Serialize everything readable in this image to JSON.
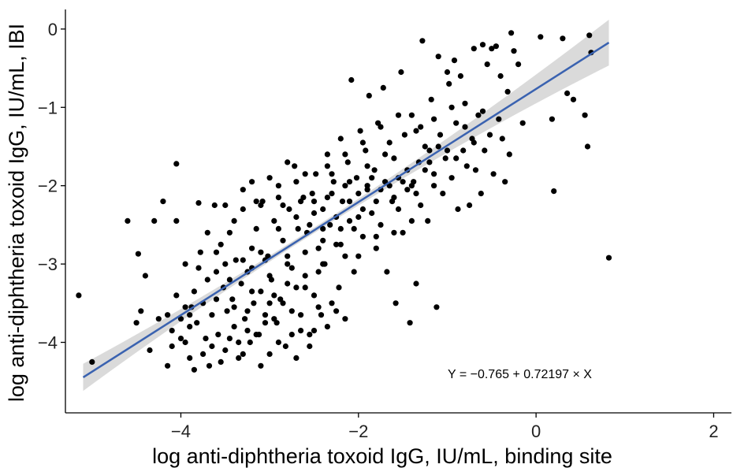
{
  "chart_data": {
    "type": "scatter",
    "xlabel": "log anti-diphtheria toxoid IgG, IU/mL, binding site",
    "ylabel": "log anti-diphtheria toxoid IgG, IU/mL, IBI",
    "xlim": [
      -5.3,
      2.2
    ],
    "ylim": [
      -4.9,
      0.25
    ],
    "x_ticks": [
      -4,
      -2,
      0,
      2
    ],
    "y_ticks": [
      0,
      -1,
      -2,
      -3,
      -4
    ],
    "x_tick_labels": [
      "−4",
      "−2",
      "0",
      "2"
    ],
    "y_tick_labels": [
      "0",
      "−1",
      "−2",
      "−3",
      "−4"
    ],
    "grid": false,
    "regression": {
      "intercept": -0.765,
      "slope": 0.72197,
      "x_range": [
        -5.1,
        0.82
      ],
      "color": "#3a62b0",
      "band_color": "#d3d3d3",
      "annotation": "Y = −0.765 + 0.72197 × X"
    },
    "point_color": "#000000",
    "points": [
      [
        -5.15,
        -3.4
      ],
      [
        -5.0,
        -4.25
      ],
      [
        -4.6,
        -2.45
      ],
      [
        -4.5,
        -3.75
      ],
      [
        -4.48,
        -2.87
      ],
      [
        -4.45,
        -3.6
      ],
      [
        -4.4,
        -3.15
      ],
      [
        -4.35,
        -4.1
      ],
      [
        -4.3,
        -2.45
      ],
      [
        -4.2,
        -2.2
      ],
      [
        -4.15,
        -3.65
      ],
      [
        -4.1,
        -3.85
      ],
      [
        -4.05,
        -2.45
      ],
      [
        -4.05,
        -1.72
      ],
      [
        -4.0,
        -3.7
      ],
      [
        -3.95,
        -4.0
      ],
      [
        -3.95,
        -3.0
      ],
      [
        -3.9,
        -3.8
      ],
      [
        -3.9,
        -4.2
      ],
      [
        -3.88,
        -3.55
      ],
      [
        -3.85,
        -4.35
      ],
      [
        -3.82,
        -3.75
      ],
      [
        -3.8,
        -2.22
      ],
      [
        -3.78,
        -2.85
      ],
      [
        -3.75,
        -3.5
      ],
      [
        -3.72,
        -3.95
      ],
      [
        -3.7,
        -2.6
      ],
      [
        -3.68,
        -4.3
      ],
      [
        -3.65,
        -3.65
      ],
      [
        -3.62,
        -2.25
      ],
      [
        -3.6,
        -3.1
      ],
      [
        -3.58,
        -3.9
      ],
      [
        -3.55,
        -2.75
      ],
      [
        -3.52,
        -3.3
      ],
      [
        -3.5,
        -4.1
      ],
      [
        -3.48,
        -3.6
      ],
      [
        -3.45,
        -2.6
      ],
      [
        -3.42,
        -3.45
      ],
      [
        -3.4,
        -3.8
      ],
      [
        -3.38,
        -2.95
      ],
      [
        -3.35,
        -4.2
      ],
      [
        -3.32,
        -3.25
      ],
      [
        -3.3,
        -2.3
      ],
      [
        -3.28,
        -3.7
      ],
      [
        -3.25,
        -3.1
      ],
      [
        -3.22,
        -4.0
      ],
      [
        -3.2,
        -2.8
      ],
      [
        -3.18,
        -3.5
      ],
      [
        -3.15,
        -2.55
      ],
      [
        -3.12,
        -3.9
      ],
      [
        -3.1,
        -3.35
      ],
      [
        -3.08,
        -2.2
      ],
      [
        -3.05,
        -3.65
      ],
      [
        -3.02,
        -2.9
      ],
      [
        -3.0,
        -4.15
      ],
      [
        -2.98,
        -3.2
      ],
      [
        -2.95,
        -2.45
      ],
      [
        -2.92,
        -3.75
      ],
      [
        -2.9,
        -2.0
      ],
      [
        -2.88,
        -3.45
      ],
      [
        -2.85,
        -2.7
      ],
      [
        -2.82,
        -4.05
      ],
      [
        -2.8,
        -3.0
      ],
      [
        -2.78,
        -2.3
      ],
      [
        -2.75,
        -3.6
      ],
      [
        -2.72,
        -1.75
      ],
      [
        -2.7,
        -3.3
      ],
      [
        -2.68,
        -2.55
      ],
      [
        -2.65,
        -3.85
      ],
      [
        -2.62,
        -2.15
      ],
      [
        -2.6,
        -3.15
      ],
      [
        -2.58,
        -2.6
      ],
      [
        -2.55,
        -3.9
      ],
      [
        -2.52,
        -2.1
      ],
      [
        -2.5,
        -3.4
      ],
      [
        -2.48,
        -1.85
      ],
      [
        -2.45,
        -2.8
      ],
      [
        -2.42,
        -3.65
      ],
      [
        -2.4,
        -2.3
      ],
      [
        -2.38,
        -3.0
      ],
      [
        -2.35,
        -1.6
      ],
      [
        -2.32,
        -2.5
      ],
      [
        -2.3,
        -3.5
      ],
      [
        -2.28,
        -1.95
      ],
      [
        -2.25,
        -2.75
      ],
      [
        -2.22,
        -3.3
      ],
      [
        -2.2,
        -1.4
      ],
      [
        -2.18,
        -2.2
      ],
      [
        -2.15,
        -2.9
      ],
      [
        -2.12,
        -1.7
      ],
      [
        -2.1,
        -2.45
      ],
      [
        -2.08,
        -0.65
      ],
      [
        -2.05,
        -3.1
      ],
      [
        -2.02,
        -1.9
      ],
      [
        -2.0,
        -2.1
      ],
      [
        -1.98,
        -1.3
      ],
      [
        -1.95,
        -2.65
      ],
      [
        -1.92,
        -1.55
      ],
      [
        -1.9,
        -2.0
      ],
      [
        -1.88,
        -0.85
      ],
      [
        -1.85,
        -2.35
      ],
      [
        -1.82,
        -1.8
      ],
      [
        -1.8,
        -2.8
      ],
      [
        -1.78,
        -1.2
      ],
      [
        -1.75,
        -2.05
      ],
      [
        -1.72,
        -0.75
      ],
      [
        -1.7,
        -1.95
      ],
      [
        -1.68,
        -3.1
      ],
      [
        -1.65,
        -1.45
      ],
      [
        -1.62,
        -2.2
      ],
      [
        -1.6,
        -1.65
      ],
      [
        -1.58,
        -3.5
      ],
      [
        -1.55,
        -1.9
      ],
      [
        -1.52,
        -0.55
      ],
      [
        -1.5,
        -2.6
      ],
      [
        -1.48,
        -1.35
      ],
      [
        -1.45,
        -2.05
      ],
      [
        -1.42,
        -3.75
      ],
      [
        -1.4,
        -1.1
      ],
      [
        -1.38,
        -1.95
      ],
      [
        -1.35,
        -3.25
      ],
      [
        -1.32,
        -1.7
      ],
      [
        -1.3,
        -2.25
      ],
      [
        -1.28,
        -0.15
      ],
      [
        -1.25,
        -1.8
      ],
      [
        -1.22,
        -2.45
      ],
      [
        -1.2,
        -1.55
      ],
      [
        -1.18,
        -0.9
      ],
      [
        -1.15,
        -2.0
      ],
      [
        -1.12,
        -3.55
      ],
      [
        -1.1,
        -0.35
      ],
      [
        -1.08,
        -1.35
      ],
      [
        -1.05,
        -2.1
      ],
      [
        -1.02,
        -1.65
      ],
      [
        -1.0,
        -0.55
      ],
      [
        -0.98,
        -0.7
      ],
      [
        -0.95,
        -1.9
      ],
      [
        -0.92,
        -0.4
      ],
      [
        -0.9,
        -1.2
      ],
      [
        -0.88,
        -2.3
      ],
      [
        -0.85,
        -0.6
      ],
      [
        -0.82,
        -1.55
      ],
      [
        -0.8,
        -0.95
      ],
      [
        -0.78,
        -1.75
      ],
      [
        -0.75,
        -2.25
      ],
      [
        -0.72,
        -1.4
      ],
      [
        -0.7,
        -0.25
      ],
      [
        -0.68,
        -1.8
      ],
      [
        -0.65,
        -1.1
      ],
      [
        -0.62,
        -2.1
      ],
      [
        -0.6,
        -0.2
      ],
      [
        -0.58,
        -1.55
      ],
      [
        -0.55,
        -0.45
      ],
      [
        -0.52,
        -1.35
      ],
      [
        -0.5,
        -0.25
      ],
      [
        -0.48,
        -1.85
      ],
      [
        -0.45,
        -0.22
      ],
      [
        -0.42,
        -1.15
      ],
      [
        -0.4,
        -0.6
      ],
      [
        -0.38,
        -1.4
      ],
      [
        -0.35,
        -1.95
      ],
      [
        -0.32,
        -0.8
      ],
      [
        -0.3,
        -1.6
      ],
      [
        -0.28,
        -0.05
      ],
      [
        -0.25,
        -0.28
      ],
      [
        -0.2,
        -0.45
      ],
      [
        -0.15,
        -1.2
      ],
      [
        0.05,
        -0.1
      ],
      [
        0.18,
        -1.15
      ],
      [
        0.2,
        -2.07
      ],
      [
        0.3,
        -0.12
      ],
      [
        0.35,
        -0.82
      ],
      [
        0.42,
        -0.9
      ],
      [
        0.55,
        -1.1
      ],
      [
        0.58,
        -1.5
      ],
      [
        0.6,
        -0.08
      ],
      [
        0.62,
        -0.3
      ],
      [
        0.82,
        -2.92
      ],
      [
        -3.6,
        -2.85
      ],
      [
        -3.4,
        -2.45
      ],
      [
        -3.25,
        -3.6
      ],
      [
        -3.15,
        -2.2
      ],
      [
        -3.05,
        -2.95
      ],
      [
        -2.95,
        -3.4
      ],
      [
        -2.85,
        -2.25
      ],
      [
        -2.75,
        -3.05
      ],
      [
        -2.65,
        -2.2
      ],
      [
        -2.55,
        -2.5
      ],
      [
        -2.45,
        -3.1
      ],
      [
        -2.35,
        -2.15
      ],
      [
        -2.25,
        -2.4
      ],
      [
        -2.15,
        -2.0
      ],
      [
        -2.05,
        -2.55
      ],
      [
        -1.95,
        -2.3
      ],
      [
        -1.85,
        -1.9
      ],
      [
        -1.75,
        -2.5
      ],
      [
        -1.65,
        -2.0
      ],
      [
        -1.55,
        -2.3
      ],
      [
        -1.45,
        -1.8
      ],
      [
        -1.35,
        -2.1
      ],
      [
        -1.25,
        -1.5
      ],
      [
        -1.15,
        -1.85
      ],
      [
        -3.7,
        -3.2
      ],
      [
        -3.5,
        -3.0
      ],
      [
        -3.3,
        -2.95
      ],
      [
        -3.1,
        -2.85
      ],
      [
        -2.9,
        -2.55
      ],
      [
        -2.7,
        -2.4
      ],
      [
        -2.5,
        -2.35
      ],
      [
        -2.3,
        -2.1
      ],
      [
        -2.1,
        -2.2
      ],
      [
        -1.9,
        -1.75
      ],
      [
        -1.7,
        -1.6
      ],
      [
        -1.5,
        -1.95
      ],
      [
        -1.3,
        -1.25
      ],
      [
        -1.1,
        -1.5
      ],
      [
        -0.9,
        -1.65
      ],
      [
        -0.7,
        -1.45
      ],
      [
        -3.85,
        -3.35
      ],
      [
        -3.65,
        -4.05
      ],
      [
        -3.45,
        -3.95
      ],
      [
        -3.25,
        -3.85
      ],
      [
        -3.05,
        -3.75
      ],
      [
        -2.85,
        -3.5
      ],
      [
        -2.65,
        -3.65
      ],
      [
        -2.45,
        -3.55
      ],
      [
        -2.25,
        -3.6
      ],
      [
        -3.95,
        -3.55
      ],
      [
        -4.0,
        -3.95
      ],
      [
        -4.15,
        -4.3
      ],
      [
        -3.75,
        -4.15
      ],
      [
        -3.55,
        -4.25
      ],
      [
        -3.35,
        -4.0
      ],
      [
        -3.15,
        -3.9
      ],
      [
        -2.95,
        -3.7
      ],
      [
        -2.75,
        -3.9
      ],
      [
        -2.55,
        -4.05
      ],
      [
        -2.35,
        -3.8
      ],
      [
        -2.15,
        -3.7
      ],
      [
        -3.5,
        -2.25
      ],
      [
        -3.3,
        -2.05
      ],
      [
        -3.1,
        -2.25
      ],
      [
        -2.9,
        -2.15
      ],
      [
        -2.7,
        -1.95
      ],
      [
        -2.5,
        -2.2
      ],
      [
        -2.3,
        -1.85
      ],
      [
        -2.1,
        -1.95
      ],
      [
        -1.9,
        -2.05
      ],
      [
        -3.45,
        -3.2
      ],
      [
        -3.2,
        -3.05
      ],
      [
        -3.0,
        -3.15
      ],
      [
        -2.8,
        -2.9
      ],
      [
        -2.6,
        -2.85
      ],
      [
        -2.4,
        -2.7
      ],
      [
        -2.2,
        -2.55
      ],
      [
        -2.0,
        -2.4
      ],
      [
        -1.8,
        -2.2
      ],
      [
        -1.6,
        -2.15
      ],
      [
        -1.4,
        -2.0
      ],
      [
        -1.2,
        -1.7
      ],
      [
        -1.0,
        -1.55
      ],
      [
        -0.8,
        -1.25
      ],
      [
        -0.6,
        -1.05
      ],
      [
        -4.25,
        -3.7
      ],
      [
        -4.05,
        -3.4
      ],
      [
        -3.8,
        -3.05
      ],
      [
        -3.6,
        -3.45
      ],
      [
        -3.4,
        -3.55
      ],
      [
        -3.2,
        -3.35
      ],
      [
        -3.0,
        -3.5
      ],
      [
        -2.8,
        -3.25
      ],
      [
        -2.6,
        -3.3
      ],
      [
        -2.4,
        -3.0
      ],
      [
        -2.2,
        -2.75
      ],
      [
        -2.0,
        -2.9
      ],
      [
        -1.8,
        -2.65
      ],
      [
        -1.6,
        -2.6
      ],
      [
        -1.4,
        -2.45
      ],
      [
        -2.9,
        -4.0
      ],
      [
        -2.7,
        -4.2
      ],
      [
        -2.5,
        -3.85
      ],
      [
        -3.1,
        -4.3
      ],
      [
        -3.3,
        -4.15
      ],
      [
        -3.9,
        -3.65
      ],
      [
        -4.1,
        -4.05
      ],
      [
        -2.6,
        -1.85
      ],
      [
        -2.4,
        -2.55
      ],
      [
        -2.8,
        -1.7
      ],
      [
        -3.0,
        -1.9
      ],
      [
        -3.2,
        -1.95
      ],
      [
        -2.35,
        -1.75
      ],
      [
        -2.15,
        -1.6
      ],
      [
        -1.95,
        -1.45
      ],
      [
        -1.75,
        -1.25
      ],
      [
        -1.55,
        -1.1
      ],
      [
        -1.35,
        -1.3
      ],
      [
        -1.15,
        -1.15
      ],
      [
        -0.95,
        -1.0
      ]
    ]
  }
}
